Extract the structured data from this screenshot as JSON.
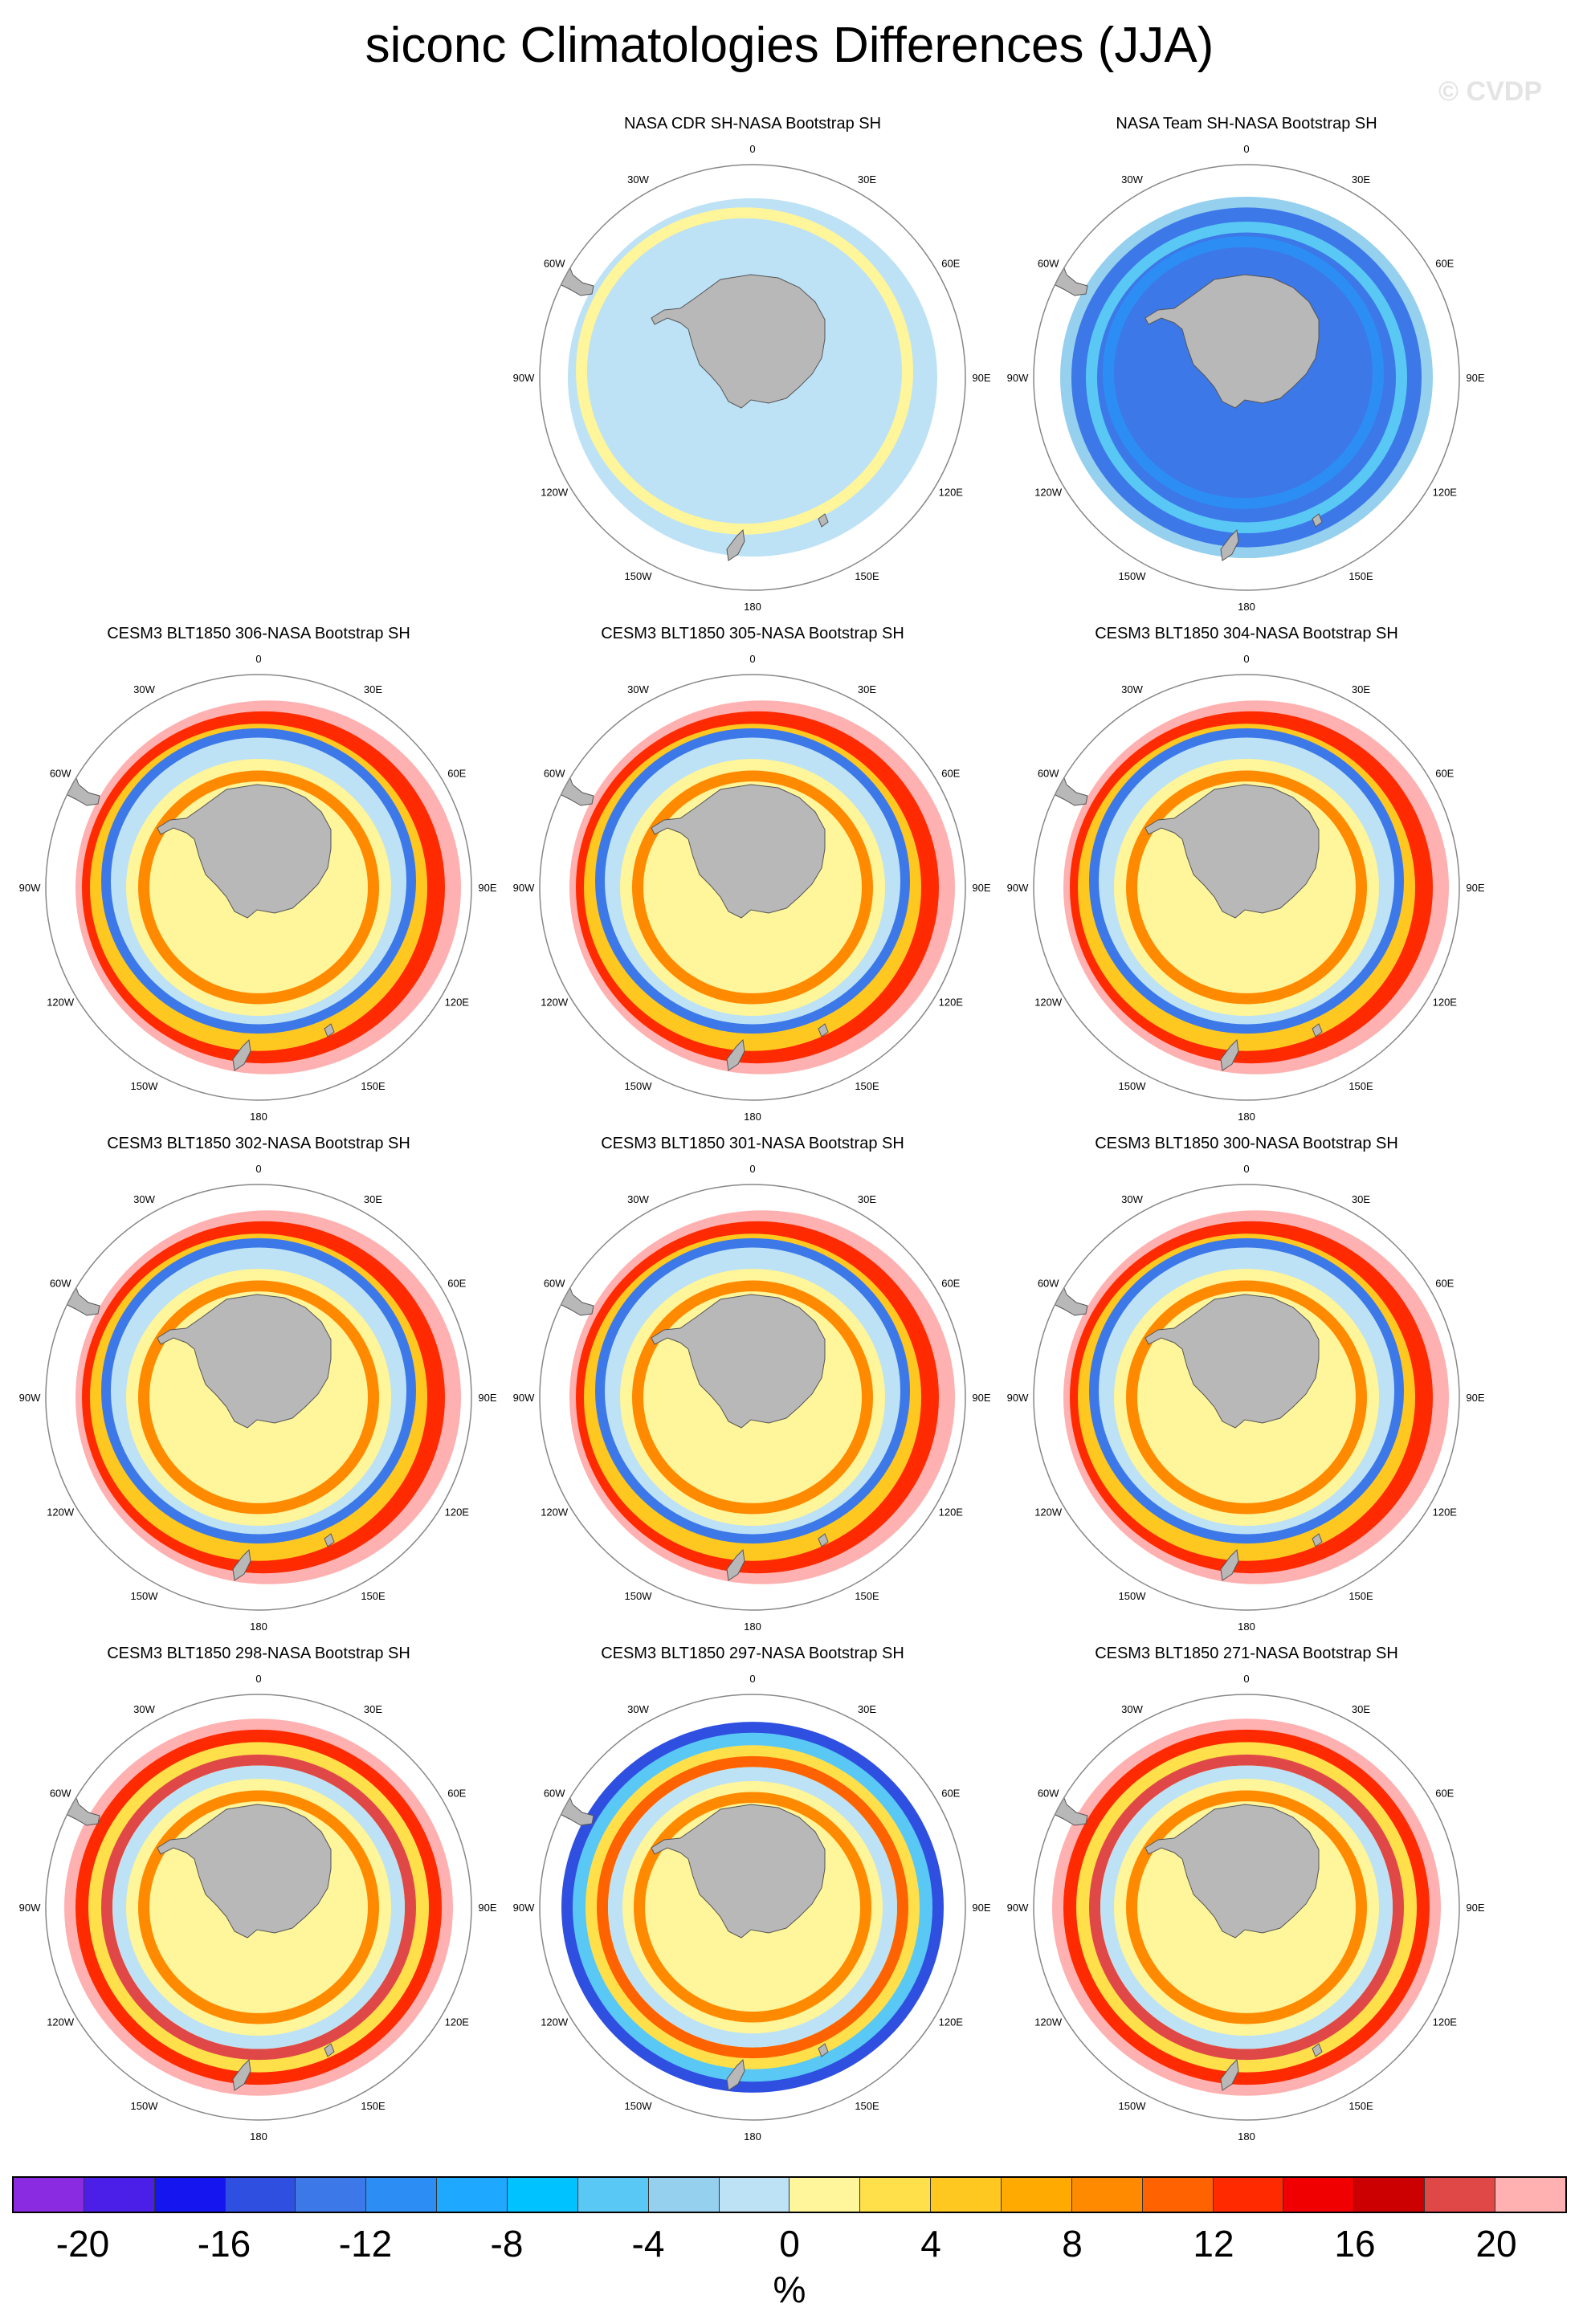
{
  "title": "siconc Climatologies Differences (JJA)",
  "watermark": "© CVDP",
  "longitude_labels": [
    "0",
    "30E",
    "60E",
    "90E",
    "120E",
    "150E",
    "180",
    "150W",
    "120W",
    "90W",
    "60W",
    "30W"
  ],
  "panels": [
    {
      "title": "NASA CDR SH-NASA Bootstrap SH",
      "pattern": "cdr"
    },
    {
      "title": "NASA Team SH-NASA Bootstrap SH",
      "pattern": "team"
    },
    {
      "title": "CESM3 BLT1850 306-NASA Bootstrap SH",
      "pattern": "model"
    },
    {
      "title": "CESM3 BLT1850 305-NASA Bootstrap SH",
      "pattern": "model"
    },
    {
      "title": "CESM3 BLT1850 304-NASA Bootstrap SH",
      "pattern": "model"
    },
    {
      "title": "CESM3 BLT1850 302-NASA Bootstrap SH",
      "pattern": "model"
    },
    {
      "title": "CESM3 BLT1850 301-NASA Bootstrap SH",
      "pattern": "model"
    },
    {
      "title": "CESM3 BLT1850 300-NASA Bootstrap SH",
      "pattern": "model"
    },
    {
      "title": "CESM3 BLT1850 298-NASA Bootstrap SH",
      "pattern": "model_warm"
    },
    {
      "title": "CESM3 BLT1850 297-NASA Bootstrap SH",
      "pattern": "model_cool"
    },
    {
      "title": "CESM3 BLT1850 271-NASA Bootstrap SH",
      "pattern": "model_warm"
    }
  ],
  "colorbar": {
    "unit": "%",
    "labels": [
      "-20",
      "-16",
      "-12",
      "-8",
      "-4",
      "0",
      "4",
      "8",
      "12",
      "16",
      "20"
    ],
    "colors": [
      "#8a2be2",
      "#4b1fe8",
      "#1515f0",
      "#2f4fe0",
      "#3c78e8",
      "#2c8ef5",
      "#1ea8ff",
      "#00c2ff",
      "#59c8f5",
      "#95d0ee",
      "#bde2f5",
      "#fff59a",
      "#ffe04a",
      "#ffc820",
      "#ffaa00",
      "#ff8a00",
      "#ff6200",
      "#ff2a00",
      "#f00000",
      "#cc0000",
      "#e04848",
      "#ffb0b0"
    ]
  },
  "colors": {
    "land": "#b8b8b8",
    "grid_circle": "#888888"
  }
}
